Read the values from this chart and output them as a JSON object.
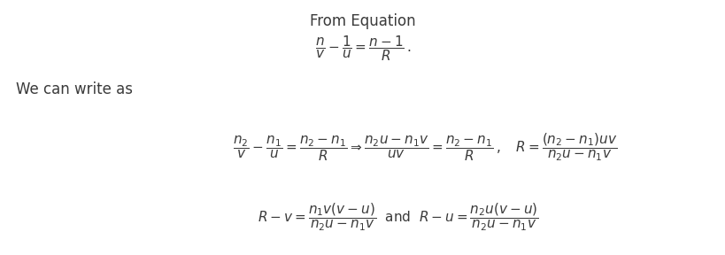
{
  "bg_color": "#ffffff",
  "title_text": "From Equation",
  "eq1": "$\\dfrac{n}{v} - \\dfrac{1}{u} = \\dfrac{n-1}{R}\\,.$",
  "label_left": "We can write as",
  "eq2": "$\\dfrac{n_2}{v} - \\dfrac{n_1}{u} = \\dfrac{n_2-n_1}{R} \\Rightarrow \\dfrac{n_2u-n_1v}{uv} = \\dfrac{n_2-n_1}{R}\\,,\\quad R = \\dfrac{(n_2-n_1)uv}{n_2u-n_1v}$",
  "eq3": "$R - v = \\dfrac{n_1v(v-u)}{n_2u-n_1v} \\text{  and  } R - u = \\dfrac{n_2u(v-u)}{n_2u-n_1v}$",
  "title_fontsize": 12,
  "eq_fontsize": 11,
  "label_fontsize": 12
}
